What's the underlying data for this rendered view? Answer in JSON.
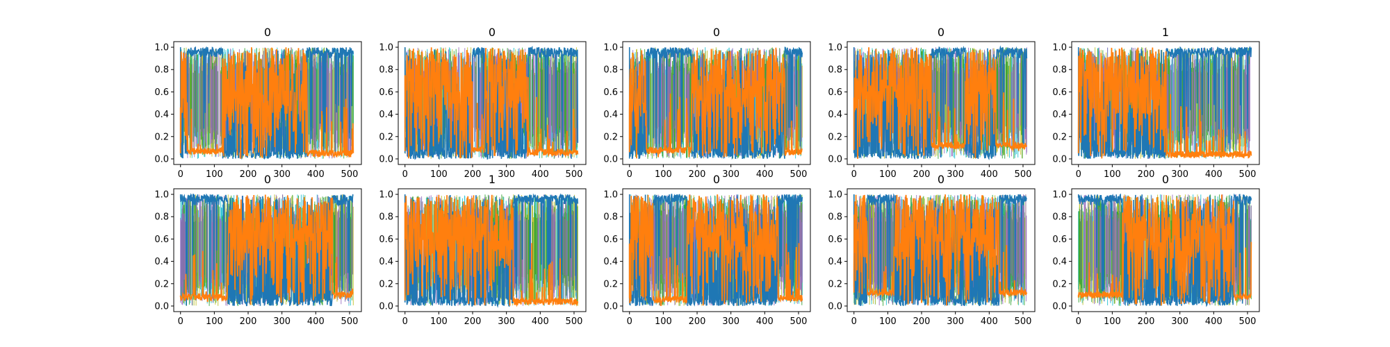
{
  "colors": {
    "blue": "#1f77b4",
    "orange": "#ff7f0e",
    "cyan": "#17becf",
    "olive": "#bcbd22",
    "green": "#2ca02c",
    "purple": "#9467bd",
    "axis": "#000000",
    "background": "#ffffff"
  },
  "chart_data": [
    {
      "type": "line",
      "title": "0",
      "xlim": [
        -20,
        535
      ],
      "ylim": [
        -0.05,
        1.05
      ],
      "xticks": [
        0,
        100,
        200,
        300,
        400,
        500
      ],
      "yticks": [
        0.0,
        0.2,
        0.4,
        0.6,
        0.8,
        1.0
      ],
      "segments": [
        {
          "start": 0,
          "end": 20,
          "dominant": "orange",
          "baseline": 0.05
        },
        {
          "start": 20,
          "end": 125,
          "dominant": "blue",
          "baseline": 0.07
        },
        {
          "start": 125,
          "end": 375,
          "dominant": "orange",
          "baseline": 0.06
        },
        {
          "start": 375,
          "end": 510,
          "dominant": "blue",
          "baseline": 0.05
        }
      ]
    },
    {
      "type": "line",
      "title": "0",
      "xlim": [
        -20,
        535
      ],
      "ylim": [
        -0.05,
        1.05
      ],
      "xticks": [
        0,
        100,
        200,
        300,
        400,
        500
      ],
      "yticks": [
        0.0,
        0.2,
        0.4,
        0.6,
        0.8,
        1.0
      ],
      "segments": [
        {
          "start": 0,
          "end": 200,
          "dominant": "orange",
          "baseline": 0.07
        },
        {
          "start": 200,
          "end": 235,
          "dominant": "blue",
          "baseline": 0.08
        },
        {
          "start": 235,
          "end": 365,
          "dominant": "orange",
          "baseline": 0.08
        },
        {
          "start": 365,
          "end": 510,
          "dominant": "blue",
          "baseline": 0.06
        }
      ]
    },
    {
      "type": "line",
      "title": "0",
      "xlim": [
        -20,
        535
      ],
      "ylim": [
        -0.05,
        1.05
      ],
      "xticks": [
        0,
        100,
        200,
        300,
        400,
        500
      ],
      "yticks": [
        0.0,
        0.2,
        0.4,
        0.6,
        0.8,
        1.0
      ],
      "segments": [
        {
          "start": 0,
          "end": 50,
          "dominant": "orange",
          "baseline": 0.06
        },
        {
          "start": 50,
          "end": 185,
          "dominant": "blue",
          "baseline": 0.08
        },
        {
          "start": 185,
          "end": 460,
          "dominant": "orange",
          "baseline": 0.07
        },
        {
          "start": 460,
          "end": 510,
          "dominant": "blue",
          "baseline": 0.06
        }
      ]
    },
    {
      "type": "line",
      "title": "0",
      "xlim": [
        -20,
        535
      ],
      "ylim": [
        -0.05,
        1.05
      ],
      "xticks": [
        0,
        100,
        200,
        300,
        400,
        500
      ],
      "yticks": [
        0.0,
        0.2,
        0.4,
        0.6,
        0.8,
        1.0
      ],
      "segments": [
        {
          "start": 0,
          "end": 230,
          "dominant": "orange",
          "baseline": 0.08
        },
        {
          "start": 230,
          "end": 330,
          "dominant": "blue",
          "baseline": 0.12
        },
        {
          "start": 330,
          "end": 420,
          "dominant": "orange",
          "baseline": 0.12
        },
        {
          "start": 420,
          "end": 510,
          "dominant": "blue",
          "baseline": 0.12
        }
      ]
    },
    {
      "type": "line",
      "title": "1",
      "xlim": [
        -20,
        535
      ],
      "ylim": [
        -0.05,
        1.05
      ],
      "xticks": [
        0,
        100,
        200,
        300,
        400,
        500
      ],
      "yticks": [
        0.0,
        0.2,
        0.4,
        0.6,
        0.8,
        1.0
      ],
      "segments": [
        {
          "start": 0,
          "end": 260,
          "dominant": "orange",
          "baseline": 0.05
        },
        {
          "start": 260,
          "end": 510,
          "dominant": "blue",
          "baseline": 0.04
        }
      ]
    },
    {
      "type": "line",
      "title": "0",
      "xlim": [
        -20,
        535
      ],
      "ylim": [
        -0.05,
        1.05
      ],
      "xticks": [
        0,
        100,
        200,
        300,
        400,
        500
      ],
      "yticks": [
        0.0,
        0.2,
        0.4,
        0.6,
        0.8,
        1.0
      ],
      "segments": [
        {
          "start": 0,
          "end": 140,
          "dominant": "blue",
          "baseline": 0.08
        },
        {
          "start": 140,
          "end": 450,
          "dominant": "orange",
          "baseline": 0.1
        },
        {
          "start": 450,
          "end": 510,
          "dominant": "blue",
          "baseline": 0.1
        }
      ]
    },
    {
      "type": "line",
      "title": "1",
      "xlim": [
        -20,
        535
      ],
      "ylim": [
        -0.05,
        1.05
      ],
      "xticks": [
        0,
        100,
        200,
        300,
        400,
        500
      ],
      "yticks": [
        0.0,
        0.2,
        0.4,
        0.6,
        0.8,
        1.0
      ],
      "segments": [
        {
          "start": 0,
          "end": 320,
          "dominant": "orange",
          "baseline": 0.05
        },
        {
          "start": 320,
          "end": 510,
          "dominant": "blue",
          "baseline": 0.04
        }
      ]
    },
    {
      "type": "line",
      "title": "0",
      "xlim": [
        -20,
        535
      ],
      "ylim": [
        -0.05,
        1.05
      ],
      "xticks": [
        0,
        100,
        200,
        300,
        400,
        500
      ],
      "yticks": [
        0.0,
        0.2,
        0.4,
        0.6,
        0.8,
        1.0
      ],
      "segments": [
        {
          "start": 0,
          "end": 70,
          "dominant": "orange",
          "baseline": 0.07
        },
        {
          "start": 70,
          "end": 170,
          "dominant": "blue",
          "baseline": 0.06
        },
        {
          "start": 170,
          "end": 440,
          "dominant": "orange",
          "baseline": 0.08
        },
        {
          "start": 440,
          "end": 510,
          "dominant": "blue",
          "baseline": 0.07
        }
      ]
    },
    {
      "type": "line",
      "title": "0",
      "xlim": [
        -20,
        535
      ],
      "ylim": [
        -0.05,
        1.05
      ],
      "xticks": [
        0,
        100,
        200,
        300,
        400,
        500
      ],
      "yticks": [
        0.0,
        0.2,
        0.4,
        0.6,
        0.8,
        1.0
      ],
      "segments": [
        {
          "start": 0,
          "end": 40,
          "dominant": "orange",
          "baseline": 0.12
        },
        {
          "start": 40,
          "end": 120,
          "dominant": "blue",
          "baseline": 0.12
        },
        {
          "start": 120,
          "end": 430,
          "dominant": "orange",
          "baseline": 0.12
        },
        {
          "start": 430,
          "end": 510,
          "dominant": "blue",
          "baseline": 0.12
        }
      ]
    },
    {
      "type": "line",
      "title": "0",
      "xlim": [
        -20,
        535
      ],
      "ylim": [
        -0.05,
        1.05
      ],
      "xticks": [
        0,
        100,
        200,
        300,
        400,
        500
      ],
      "yticks": [
        0.0,
        0.2,
        0.4,
        0.6,
        0.8,
        1.0
      ],
      "segments": [
        {
          "start": 0,
          "end": 130,
          "dominant": "blue",
          "baseline": 0.1
        },
        {
          "start": 130,
          "end": 460,
          "dominant": "orange",
          "baseline": 0.1
        },
        {
          "start": 460,
          "end": 510,
          "dominant": "blue",
          "baseline": 0.08
        }
      ]
    }
  ]
}
